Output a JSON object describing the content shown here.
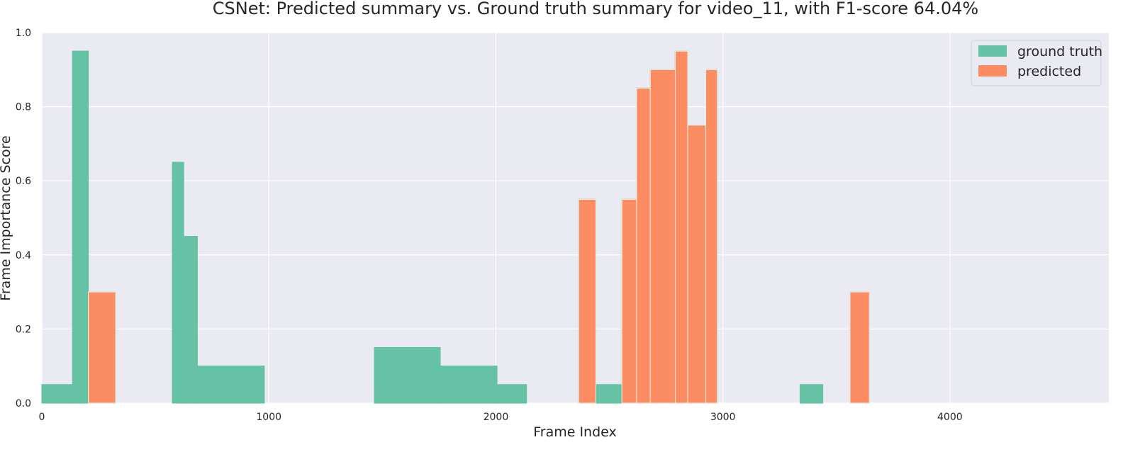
{
  "chart_data": {
    "type": "area",
    "title": "CSNet: Predicted summary vs. Ground truth summary for video_11, with F1-score 64.04%",
    "xlabel": "Frame Index",
    "ylabel": "Frame Importance Score",
    "xlim": [
      0,
      4700
    ],
    "ylim": [
      0,
      1.0
    ],
    "xticks": [
      0,
      1000,
      2000,
      3000,
      4000
    ],
    "yticks": [
      0.0,
      0.2,
      0.4,
      0.6,
      0.8,
      1.0
    ],
    "ytick_labels": [
      "0.0",
      "0.2",
      "0.4",
      "0.6",
      "0.8",
      "1.0"
    ],
    "grid": true,
    "legend_position": "top-right",
    "series": [
      {
        "name": "ground truth",
        "color": "#66c2a5",
        "segments": [
          {
            "start": 0,
            "end": 135,
            "value": 0.05
          },
          {
            "start": 135,
            "end": 205,
            "value": 0.95
          },
          {
            "start": 205,
            "end": 325,
            "value": 0.3
          },
          {
            "start": 575,
            "end": 625,
            "value": 0.65
          },
          {
            "start": 625,
            "end": 685,
            "value": 0.45
          },
          {
            "start": 685,
            "end": 980,
            "value": 0.1
          },
          {
            "start": 1465,
            "end": 1755,
            "value": 0.15
          },
          {
            "start": 1755,
            "end": 2005,
            "value": 0.1
          },
          {
            "start": 2005,
            "end": 2135,
            "value": 0.05
          },
          {
            "start": 2365,
            "end": 2440,
            "value": 0.55
          },
          {
            "start": 2440,
            "end": 2555,
            "value": 0.05
          },
          {
            "start": 2555,
            "end": 2620,
            "value": 0.55
          },
          {
            "start": 2620,
            "end": 2680,
            "value": 0.85
          },
          {
            "start": 2680,
            "end": 2790,
            "value": 0.9
          },
          {
            "start": 2790,
            "end": 2845,
            "value": 0.95
          },
          {
            "start": 2845,
            "end": 2925,
            "value": 0.75
          },
          {
            "start": 2925,
            "end": 2975,
            "value": 0.9
          },
          {
            "start": 3340,
            "end": 3440,
            "value": 0.05
          },
          {
            "start": 3560,
            "end": 3645,
            "value": 0.3
          }
        ]
      },
      {
        "name": "predicted",
        "color": "#fc8d62",
        "segments": [
          {
            "start": 205,
            "end": 325,
            "value": 0.3
          },
          {
            "start": 2365,
            "end": 2440,
            "value": 0.55
          },
          {
            "start": 2555,
            "end": 2620,
            "value": 0.55
          },
          {
            "start": 2620,
            "end": 2680,
            "value": 0.85
          },
          {
            "start": 2680,
            "end": 2790,
            "value": 0.9
          },
          {
            "start": 2790,
            "end": 2845,
            "value": 0.95
          },
          {
            "start": 2845,
            "end": 2925,
            "value": 0.75
          },
          {
            "start": 2925,
            "end": 2975,
            "value": 0.9
          },
          {
            "start": 3560,
            "end": 3645,
            "value": 0.3
          }
        ]
      }
    ]
  }
}
